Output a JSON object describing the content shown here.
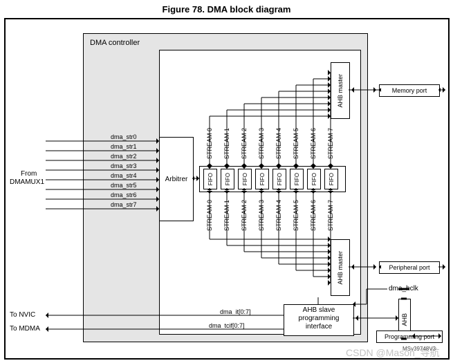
{
  "figure": {
    "title": "Figure 78. DMA block diagram",
    "doc_id": "MSv39748V3"
  },
  "dma_box": {
    "label": "DMA controller",
    "stroke": "#000",
    "fill": "#e5e5e5"
  },
  "inner_box": {
    "stroke": "#000",
    "fill": "#ffffff"
  },
  "inputs": {
    "from_label_l1": "From",
    "from_label_l2": "DMAMUX1",
    "signals": [
      "dma_str0",
      "dma_str1",
      "dma_str2",
      "dma_str3",
      "dma_str4",
      "dma_str5",
      "dma_str6",
      "dma_str7"
    ]
  },
  "arbiter": {
    "label": "Arbitrer"
  },
  "streams": {
    "count": 8,
    "top_labels": [
      "STREAM 0",
      "STREAM 1",
      "STREAM 2",
      "STREAM 3",
      "STREAM 4",
      "STREAM 5",
      "STREAM 6",
      "STREAM 7"
    ],
    "bot_labels": [
      "STREAM 0",
      "STREAM 1",
      "STREAM 2",
      "STREAM 3",
      "STREAM 4",
      "STREAM 5",
      "STREAM 6",
      "STREAM 7"
    ],
    "fifo_label": "FIFO"
  },
  "ahb_master_top": {
    "label": "AHB master"
  },
  "ahb_master_bot": {
    "label": "AHB master"
  },
  "ports": {
    "memory": "Memory port",
    "peripheral": "Peripheral port",
    "programming": "Programming port",
    "hclk": "dma_hclk",
    "ahb": "AHB"
  },
  "slave": {
    "label_l1": "AHB slave",
    "label_l2": "programming",
    "label_l3": "interface"
  },
  "outputs": {
    "nvic": "To NVIC",
    "mdma": "To MDMA",
    "it": "dma_it[0:7]",
    "tcif": "dma_tcif[0:7]"
  },
  "watermark": {
    "text": "CSDN @Mason_导航"
  },
  "style": {
    "line_color": "#000000",
    "line_w": 1,
    "font_small": 10
  }
}
